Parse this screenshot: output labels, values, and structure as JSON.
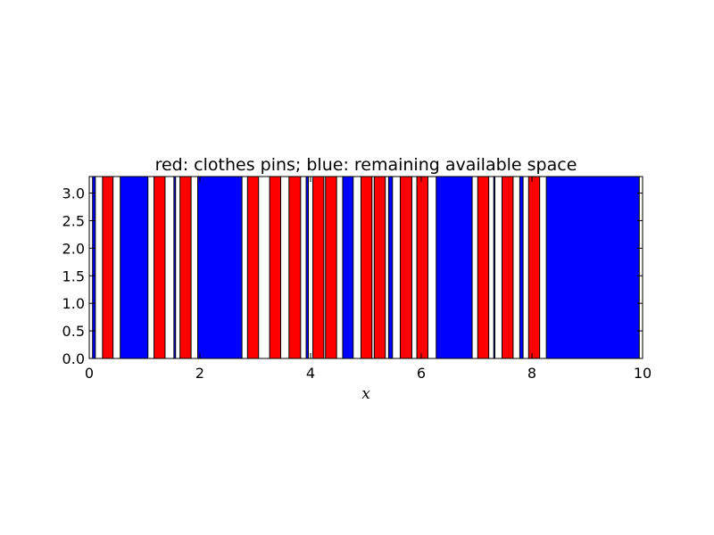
{
  "chart_data": {
    "type": "bar",
    "title": "red: clothes pins; blue: remaining available space",
    "xlabel": "x",
    "ylabel": "",
    "xlim": [
      0,
      10
    ],
    "ylim": [
      0,
      3.3
    ],
    "xticks": [
      0,
      2,
      4,
      6,
      8,
      10
    ],
    "xtick_labels": [
      "0",
      "2",
      "4",
      "6",
      "8",
      "10"
    ],
    "yticks": [
      0.0,
      0.5,
      1.0,
      1.5,
      2.0,
      2.5,
      3.0
    ],
    "ytick_labels": [
      "0.0",
      "0.5",
      "1.0",
      "1.5",
      "2.0",
      "2.5",
      "3.0"
    ],
    "grid": false,
    "bar_height": 3.3,
    "colors": {
      "pins": "#ff0000",
      "space": "#0000ff",
      "edge": "#000000"
    },
    "series": [
      {
        "color": "#ff0000",
        "intervals": [
          [
            0.24,
            0.43
          ],
          [
            1.17,
            1.37
          ],
          [
            1.64,
            1.84
          ],
          [
            2.86,
            3.06
          ],
          [
            3.26,
            3.46
          ],
          [
            3.61,
            3.82
          ],
          [
            4.04,
            4.24
          ],
          [
            4.27,
            4.47
          ],
          [
            4.91,
            5.11
          ],
          [
            5.15,
            5.35
          ],
          [
            5.62,
            5.83
          ],
          [
            5.92,
            6.12
          ],
          [
            7.02,
            7.22
          ],
          [
            7.46,
            7.66
          ],
          [
            7.94,
            8.14
          ]
        ]
      },
      {
        "color": "#0000ff",
        "intervals": [
          [
            0.06,
            0.11
          ],
          [
            0.56,
            1.06
          ],
          [
            1.53,
            1.56
          ],
          [
            1.96,
            2.76
          ],
          [
            3.92,
            3.96
          ],
          [
            4.58,
            4.77
          ],
          [
            5.41,
            5.48
          ],
          [
            6.27,
            6.92
          ],
          [
            7.31,
            7.33
          ],
          [
            7.78,
            7.84
          ],
          [
            8.26,
            9.94
          ]
        ]
      }
    ]
  }
}
